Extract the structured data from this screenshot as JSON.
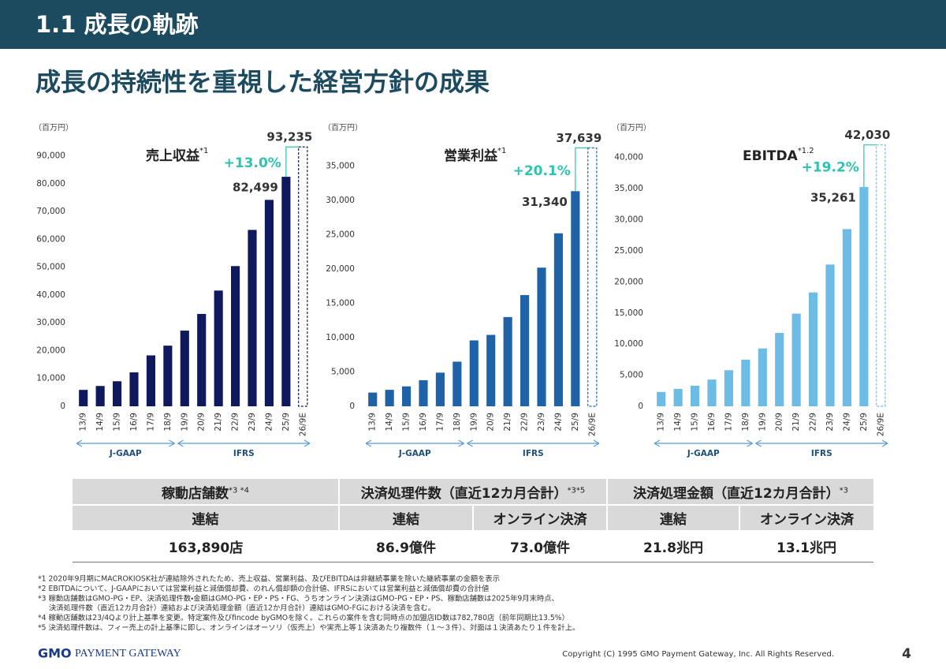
{
  "header": {
    "title": "1.1  成長の軌跡",
    "subtitle": "成長の持続性を重視した経営方針の成果"
  },
  "chart_data": [
    {
      "type": "bar",
      "title": "売上収益",
      "title_note": "*1",
      "unit": "（百万円）",
      "color": "#0f1a5e",
      "categories": [
        "13/9",
        "14/9",
        "15/9",
        "16/9",
        "17/9",
        "18/9",
        "19/9",
        "20/9",
        "21/9",
        "22/9",
        "23/9",
        "24/9",
        "25/9",
        "26/9E"
      ],
      "values": [
        5900,
        7300,
        9000,
        12200,
        18300,
        21800,
        27200,
        33200,
        41600,
        50400,
        63400,
        74200,
        82499,
        93235
      ],
      "value_labels": [
        null,
        null,
        null,
        null,
        null,
        null,
        null,
        null,
        null,
        null,
        null,
        null,
        "82,499",
        "93,235"
      ],
      "growth_label": "+13.0%",
      "ylim": [
        0,
        95000
      ],
      "yticks": [
        0,
        {
          "value": 10000,
          "label": "10,000"
        },
        {
          "value": 20000,
          "label": "20,000"
        },
        {
          "value": 30000,
          "label": "30,000"
        },
        {
          "value": 40000,
          "label": "40,000"
        },
        {
          "value": 50000,
          "label": "50,000"
        },
        {
          "value": 60000,
          "label": "60,000"
        },
        {
          "value": 70000,
          "label": "70,000"
        },
        {
          "value": 80000,
          "label": "80,000"
        },
        {
          "value": 90000,
          "label": "90,000"
        }
      ],
      "periods": [
        "J-GAAP",
        "IFRS"
      ]
    },
    {
      "type": "bar",
      "title": "営業利益",
      "title_note": "*1",
      "unit": "（百万円）",
      "color": "#1f62a8",
      "categories": [
        "13/9",
        "14/9",
        "15/9",
        "16/9",
        "17/9",
        "18/9",
        "19/9",
        "20/9",
        "21/9",
        "22/9",
        "23/9",
        "24/9",
        "25/9",
        "26/9E"
      ],
      "values": [
        2000,
        2400,
        2900,
        3800,
        4900,
        6500,
        9600,
        10400,
        13000,
        16200,
        20200,
        25200,
        31340,
        37639
      ],
      "value_labels": [
        null,
        null,
        null,
        null,
        null,
        null,
        null,
        null,
        null,
        null,
        null,
        null,
        "31,340",
        "37,639"
      ],
      "growth_label": "+20.1%",
      "ylim": [
        0,
        38500
      ],
      "yticks": [
        0,
        {
          "value": 5000,
          "label": "5,000"
        },
        {
          "value": 10000,
          "label": "10,000"
        },
        {
          "value": 15000,
          "label": "15,000"
        },
        {
          "value": 20000,
          "label": "20,000"
        },
        {
          "value": 25000,
          "label": "25,000"
        },
        {
          "value": 30000,
          "label": "30,000"
        },
        {
          "value": 35000,
          "label": "35,000"
        }
      ],
      "periods": [
        "J-GAAP",
        "IFRS"
      ]
    },
    {
      "type": "bar",
      "title": "EBITDA",
      "title_note": "*1.2",
      "unit": "（百万円）",
      "color": "#6cbce6",
      "categories": [
        "13/9",
        "14/9",
        "15/9",
        "16/9",
        "17/9",
        "18/9",
        "19/9",
        "20/9",
        "21/9",
        "22/9",
        "23/9",
        "24/9",
        "25/9",
        "26/9E"
      ],
      "values": [
        2300,
        2800,
        3300,
        4300,
        5800,
        7500,
        9300,
        11800,
        14900,
        18300,
        22800,
        28500,
        35261,
        42030
      ],
      "value_labels": [
        null,
        null,
        null,
        null,
        null,
        null,
        null,
        null,
        null,
        null,
        null,
        null,
        "35,261",
        "42,030"
      ],
      "growth_label": "+19.2%",
      "ylim": [
        0,
        42500
      ],
      "yticks": [
        0,
        {
          "value": 5000,
          "label": "5,000"
        },
        {
          "value": 10000,
          "label": "10,000"
        },
        {
          "value": 15000,
          "label": "15,000"
        },
        {
          "value": 20000,
          "label": "20,000"
        },
        {
          "value": 25000,
          "label": "25,000"
        },
        {
          "value": 30000,
          "label": "30,000"
        },
        {
          "value": 35000,
          "label": "35,000"
        },
        {
          "value": 40000,
          "label": "40,000"
        }
      ],
      "periods": [
        "J-GAAP",
        "IFRS"
      ]
    }
  ],
  "table": {
    "groups": [
      {
        "text": "稼動店舗数",
        "note": "*3 *4"
      },
      {
        "text": "決済処理件数（直近12カ月合計）",
        "note": "*3*5"
      },
      {
        "text": "決済処理金額（直近12カ月合計）",
        "note": "*3"
      }
    ],
    "subheaders": [
      "連結",
      "連結",
      "オンライン決済",
      "連結",
      "オンライン決済"
    ],
    "values": [
      "163,890店",
      "86.9億件",
      "73.0億件",
      "21.8兆円",
      "13.1兆円"
    ]
  },
  "footnotes": [
    "*1 2020年9月期にMACROKIOSK社が連結除外されたため、売上収益、営業利益、及びEBITDAは非継続事業を除いた継続事業の金額を表示",
    "*2 EBITDAについて、J-GAAPにおいては営業利益と減価償却費、のれん償却額の合計値、IFRSにおいては営業利益と減価償却費の合計値",
    "*3 稼動店舗数はGMO-PG・EP、決済処理件数・金額はGMO-PG・EP・PS・FG、うちオンライン決済はGMO-PG・EP・PS、稼動店舗数は2025年9月末時点、",
    "決済処理件数（直近12カ月合計）連結および決済処理金額（直近12か月合計）連結はGMO-FGにおける決済を含む。",
    "*4 稼動店舗数は23/4Qより計上基準を変更。特定案件及びfincode byGMOを除く。これらの案件を含む同時点の加盟店ID数は782,780店（前年同期比13.5%）",
    "*5 決済処理件数は、フィー売上の計上基準に即し、オンラインはオーソリ（仮売上）や実売上等１決済あたり複数件（１～３件）、対面は１決済あたり１件を計上。"
  ],
  "footer": {
    "logo_mark": "GMO",
    "logo_text": "PAYMENT GATEWAY",
    "copyright": "Copyright (C) 1995 GMO Payment Gateway, Inc. All Rights Reserved.",
    "page": "4"
  }
}
